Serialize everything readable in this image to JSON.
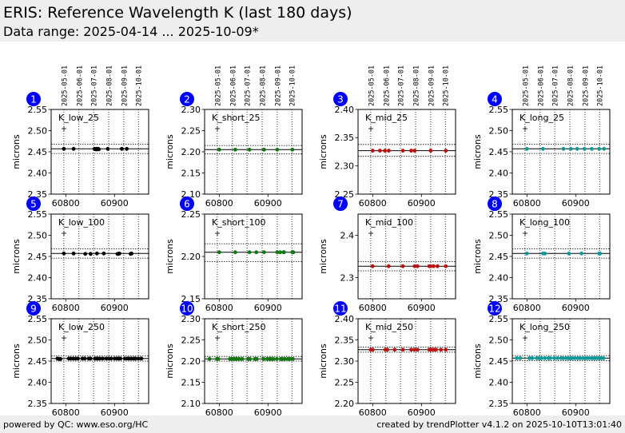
{
  "header": {
    "title": "ERIS: Reference Wavelength K (last 180 days)",
    "subtitle": "Data range: 2025-04-14 ... 2025-10-09*"
  },
  "footer": {
    "left": "powered by QC: www.eso.org/HC",
    "right": "created by trendPlotter v4.1.2 on 2025-10-10T13:01:40"
  },
  "date_ticks": [
    {
      "label": "2025-05-01",
      "mjd": 60796
    },
    {
      "label": "2025-06-01",
      "mjd": 60827
    },
    {
      "label": "2025-07-01",
      "mjd": 60857
    },
    {
      "label": "2025-08-01",
      "mjd": 60888
    },
    {
      "label": "2025-09-01",
      "mjd": 60919
    },
    {
      "label": "2025-10-01",
      "mjd": 60949
    }
  ],
  "colors": {
    "low": "#000000",
    "short": "#117711",
    "mid": "#bb1111",
    "long": "#119999",
    "badge": "#0000ff"
  },
  "chart_data": [
    {
      "type": "scatter",
      "panel": "1",
      "label": "K_low_25",
      "ylabel": "microns",
      "xlim": [
        60770,
        60970
      ],
      "ylim": [
        2.35,
        2.55
      ],
      "yticks": [
        "2.35",
        "2.40",
        "2.45",
        "2.50",
        "2.55"
      ],
      "xticks": [
        "60800",
        "60900"
      ],
      "xtick_values": [
        60800,
        60900
      ],
      "color_key": "low",
      "ref": 2.457,
      "band": [
        2.446,
        2.468
      ],
      "x": [
        60796,
        60816,
        60859,
        60861,
        60862,
        60863,
        60864,
        60865,
        60866,
        60868,
        60886,
        60915,
        60925
      ],
      "y": [
        2.457,
        2.457,
        2.457,
        2.456,
        2.456,
        2.457,
        2.456,
        2.456,
        2.457,
        2.456,
        2.457,
        2.457,
        2.457
      ]
    },
    {
      "type": "scatter",
      "panel": "2",
      "label": "K_short_25",
      "ylabel": "microns",
      "xlim": [
        60770,
        60970
      ],
      "ylim": [
        2.1,
        2.3
      ],
      "yticks": [
        "2.10",
        "2.15",
        "2.20",
        "2.25",
        "2.30"
      ],
      "xticks": [
        "60800",
        "60900"
      ],
      "xtick_values": [
        60800,
        60900
      ],
      "color_key": "short",
      "ref": 2.205,
      "band": [
        2.195,
        2.215
      ],
      "x": [
        60800,
        60833,
        60862,
        60892,
        60919,
        60950
      ],
      "y": [
        2.205,
        2.205,
        2.205,
        2.205,
        2.205,
        2.205
      ]
    },
    {
      "type": "scatter",
      "panel": "3",
      "label": "K_mid_25",
      "ylabel": "microns",
      "xlim": [
        60770,
        60970
      ],
      "ylim": [
        2.25,
        2.4
      ],
      "yticks": [
        "2.25",
        "2.30",
        "2.35",
        "2.40"
      ],
      "xticks": [
        "60800",
        "60900"
      ],
      "xtick_values": [
        60800,
        60900
      ],
      "color_key": "mid",
      "ref": 2.327,
      "band": [
        2.317,
        2.338
      ],
      "x": [
        60800,
        60815,
        60825,
        60833,
        60862,
        60879,
        60886,
        60919,
        60950
      ],
      "y": [
        2.327,
        2.327,
        2.327,
        2.327,
        2.327,
        2.327,
        2.327,
        2.327,
        2.327
      ]
    },
    {
      "type": "scatter",
      "panel": "4",
      "label": "K_long_25",
      "ylabel": "microns",
      "xlim": [
        60770,
        60970
      ],
      "ylim": [
        2.35,
        2.55
      ],
      "yticks": [
        "2.35",
        "2.40",
        "2.45",
        "2.50",
        "2.55"
      ],
      "xticks": [
        "60800",
        "60900"
      ],
      "xtick_values": [
        60800,
        60900
      ],
      "color_key": "long",
      "ref": 2.457,
      "band": [
        2.446,
        2.468
      ],
      "x": [
        60800,
        60833,
        60875,
        60890,
        60903,
        60918,
        60933,
        60948,
        60958
      ],
      "y": [
        2.457,
        2.457,
        2.457,
        2.457,
        2.457,
        2.457,
        2.457,
        2.457,
        2.457
      ]
    },
    {
      "type": "scatter",
      "panel": "5",
      "label": "K_low_100",
      "ylabel": "microns",
      "xlim": [
        60770,
        60970
      ],
      "ylim": [
        2.35,
        2.55
      ],
      "yticks": [
        "2.35",
        "2.40",
        "2.45",
        "2.50",
        "2.55"
      ],
      "xticks": [
        "60800",
        "60900"
      ],
      "xtick_values": [
        60800,
        60900
      ],
      "color_key": "low",
      "ref": 2.457,
      "band": [
        2.446,
        2.468
      ],
      "x": [
        60796,
        60816,
        60840,
        60851,
        60864,
        60878,
        60906,
        60908,
        60910,
        60933,
        60935
      ],
      "y": [
        2.457,
        2.457,
        2.456,
        2.456,
        2.457,
        2.457,
        2.456,
        2.456,
        2.457,
        2.456,
        2.457
      ]
    },
    {
      "type": "scatter",
      "panel": "6",
      "label": "K_short_100",
      "ylabel": "microns",
      "xlim": [
        60770,
        60970
      ],
      "ylim": [
        2.15,
        2.25
      ],
      "yticks": [
        "2.15",
        "2.20",
        "2.25"
      ],
      "xticks": [
        "60800",
        "60900"
      ],
      "xtick_values": [
        60800,
        60900
      ],
      "color_key": "short",
      "ref": 2.205,
      "band": [
        2.194,
        2.215
      ],
      "x": [
        60800,
        60833,
        60862,
        60876,
        60892,
        60919,
        60925,
        60932,
        60933,
        60950,
        60952
      ],
      "y": [
        2.205,
        2.205,
        2.205,
        2.205,
        2.205,
        2.205,
        2.205,
        2.205,
        2.205,
        2.205,
        2.205
      ]
    },
    {
      "type": "scatter",
      "panel": "7",
      "label": "K_mid_100",
      "ylabel": "microns",
      "xlim": [
        60770,
        60970
      ],
      "ylim": [
        2.25,
        2.45
      ],
      "yticks": [
        "2.3",
        "2.4"
      ],
      "xticks": [
        "60800",
        "60900"
      ],
      "xtick_values": [
        60800,
        60900
      ],
      "color_key": "mid",
      "ref": 2.327,
      "band": [
        2.316,
        2.338
      ],
      "x": [
        60800,
        60833,
        60862,
        60886,
        60892,
        60916,
        60919,
        60925,
        60933,
        60950
      ],
      "y": [
        2.327,
        2.327,
        2.327,
        2.327,
        2.327,
        2.327,
        2.327,
        2.327,
        2.327,
        2.327
      ]
    },
    {
      "type": "scatter",
      "panel": "8",
      "label": "K_long_100",
      "ylabel": "microns",
      "xlim": [
        60770,
        60970
      ],
      "ylim": [
        2.35,
        2.55
      ],
      "yticks": [
        "2.35",
        "2.40",
        "2.45",
        "2.50",
        "2.55"
      ],
      "xticks": [
        "60800",
        "60900"
      ],
      "xtick_values": [
        60800,
        60900
      ],
      "color_key": "long",
      "ref": 2.457,
      "band": [
        2.446,
        2.468
      ],
      "x": [
        60800,
        60833,
        60837,
        60886,
        60912,
        60948,
        60950
      ],
      "y": [
        2.457,
        2.457,
        2.457,
        2.457,
        2.457,
        2.457,
        2.457
      ]
    },
    {
      "type": "scatter",
      "panel": "9",
      "label": "K_low_250",
      "ylabel": "microns",
      "xlim": [
        60770,
        60970
      ],
      "ylim": [
        2.35,
        2.55
      ],
      "yticks": [
        "2.35",
        "2.40",
        "2.45",
        "2.50",
        "2.55"
      ],
      "xticks": [
        "60800",
        "60900"
      ],
      "xtick_values": [
        60800,
        60900
      ],
      "color_key": "low",
      "ref": 2.456,
      "band": [
        2.45,
        2.462
      ],
      "x": [
        60783,
        60786,
        60789,
        60806,
        60810,
        60815,
        60820,
        60825,
        60834,
        60839,
        60847,
        60851,
        60860,
        60864,
        60866,
        60870,
        60876,
        60883,
        60888,
        60893,
        60900,
        60905,
        60908,
        60912,
        60921,
        60926,
        60930,
        60935,
        60940,
        60943,
        60949,
        60955
      ],
      "y": [
        2.456,
        2.455,
        2.455,
        2.456,
        2.456,
        2.456,
        2.456,
        2.456,
        2.456,
        2.456,
        2.456,
        2.456,
        2.456,
        2.456,
        2.456,
        2.456,
        2.456,
        2.456,
        2.456,
        2.456,
        2.456,
        2.456,
        2.456,
        2.456,
        2.456,
        2.456,
        2.456,
        2.456,
        2.456,
        2.456,
        2.456,
        2.456
      ]
    },
    {
      "type": "scatter",
      "panel": "10",
      "label": "K_short_250",
      "ylabel": "microns",
      "xlim": [
        60770,
        60970
      ],
      "ylim": [
        2.1,
        2.3
      ],
      "yticks": [
        "2.10",
        "2.15",
        "2.20",
        "2.25",
        "2.30"
      ],
      "xticks": [
        "60800",
        "60900"
      ],
      "xtick_values": [
        60800,
        60900
      ],
      "color_key": "short",
      "ref": 2.205,
      "band": [
        2.2,
        2.211
      ],
      "x": [
        60780,
        60795,
        60798,
        60822,
        60826,
        60829,
        60833,
        60836,
        60841,
        60847,
        60859,
        60863,
        60873,
        60877,
        60891,
        60898,
        60903,
        60906,
        60911,
        60918,
        60926,
        60930,
        60935,
        60941,
        60945,
        60951
      ],
      "y": [
        2.205,
        2.205,
        2.205,
        2.205,
        2.205,
        2.205,
        2.205,
        2.205,
        2.205,
        2.205,
        2.205,
        2.205,
        2.205,
        2.205,
        2.205,
        2.205,
        2.205,
        2.205,
        2.205,
        2.205,
        2.205,
        2.205,
        2.205,
        2.205,
        2.205,
        2.205
      ]
    },
    {
      "type": "scatter",
      "panel": "11",
      "label": "K_mid_250",
      "ylabel": "microns",
      "xlim": [
        60770,
        60970
      ],
      "ylim": [
        2.2,
        2.4
      ],
      "yticks": [
        "2.20",
        "2.25",
        "2.30",
        "2.35",
        "2.40"
      ],
      "xticks": [
        "60800",
        "60900"
      ],
      "xtick_values": [
        60800,
        60900
      ],
      "color_key": "mid",
      "ref": 2.327,
      "band": [
        2.321,
        2.333
      ],
      "x": [
        60796,
        60800,
        60826,
        60830,
        60845,
        60862,
        60879,
        60886,
        60892,
        60916,
        60919,
        60922,
        60926,
        60930,
        60940,
        60950
      ],
      "y": [
        2.327,
        2.327,
        2.327,
        2.327,
        2.327,
        2.327,
        2.327,
        2.327,
        2.327,
        2.327,
        2.327,
        2.327,
        2.327,
        2.327,
        2.327,
        2.327
      ]
    },
    {
      "type": "scatter",
      "panel": "12",
      "label": "K_long_250",
      "ylabel": "microns",
      "xlim": [
        60770,
        60970
      ],
      "ylim": [
        2.35,
        2.55
      ],
      "yticks": [
        "2.35",
        "2.40",
        "2.45",
        "2.50",
        "2.55"
      ],
      "xticks": [
        "60800",
        "60900"
      ],
      "xtick_values": [
        60800,
        60900
      ],
      "color_key": "long",
      "ref": 2.457,
      "band": [
        2.451,
        2.463
      ],
      "x": [
        60779,
        60786,
        60805,
        60811,
        60820,
        60825,
        60830,
        60837,
        60844,
        60848,
        60856,
        60863,
        60870,
        60874,
        60880,
        60885,
        60890,
        60893,
        60898,
        60904,
        60909,
        60915,
        60921,
        60926,
        60932,
        60936,
        60940,
        60945,
        60949,
        60952,
        60957
      ],
      "y": [
        2.457,
        2.457,
        2.457,
        2.457,
        2.457,
        2.457,
        2.457,
        2.457,
        2.457,
        2.457,
        2.457,
        2.457,
        2.457,
        2.457,
        2.457,
        2.457,
        2.457,
        2.457,
        2.457,
        2.457,
        2.457,
        2.457,
        2.457,
        2.457,
        2.457,
        2.457,
        2.457,
        2.457,
        2.457,
        2.457,
        2.457
      ]
    }
  ]
}
